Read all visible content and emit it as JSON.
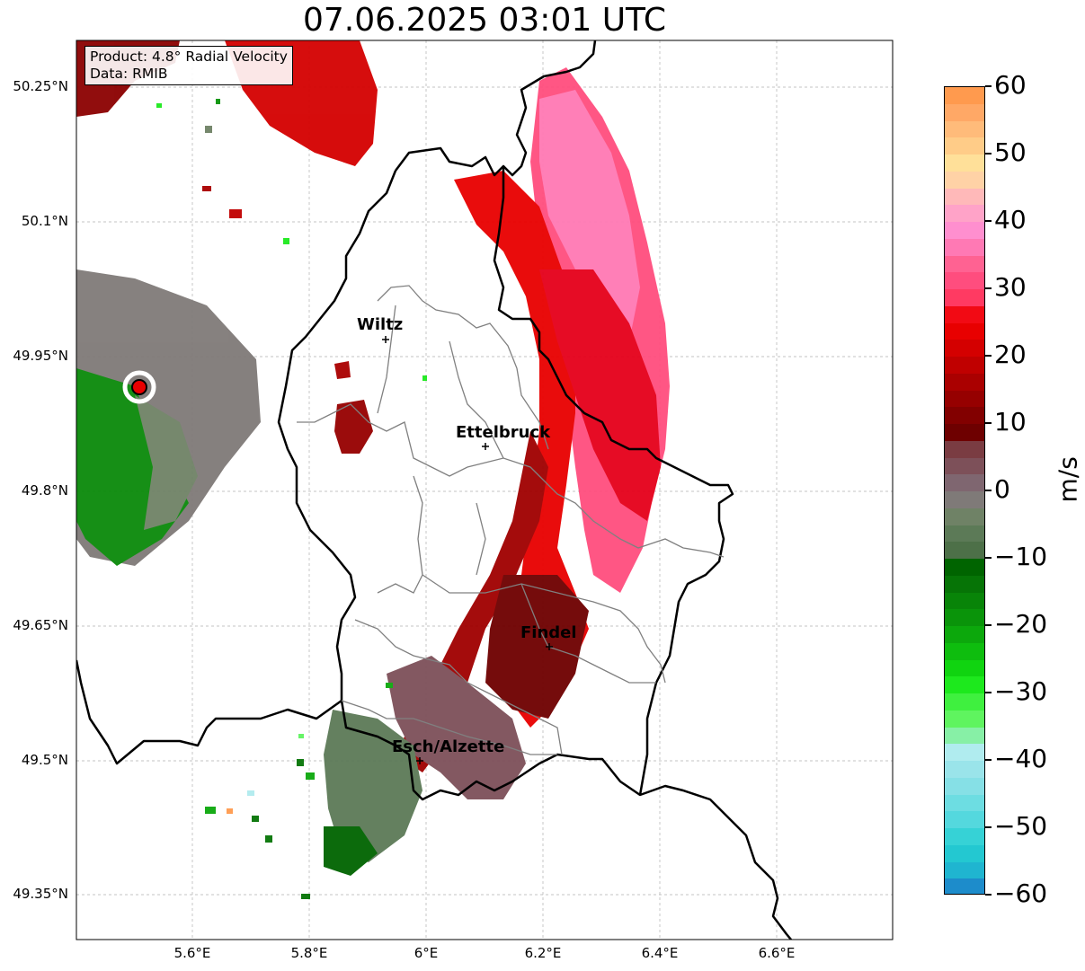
{
  "title": "07.06.2025 03:01 UTC",
  "info": {
    "product": "Product: 4.8° Radial Velocity",
    "data_source": "Data: RMIB"
  },
  "lat_ticks": [
    "50.25°N",
    "50.1°N",
    "49.95°N",
    "49.8°N",
    "49.65°N",
    "49.5°N",
    "49.35°N"
  ],
  "lon_ticks": [
    "5.6°E",
    "5.8°E",
    "6°E",
    "6.2°E",
    "6.4°E",
    "6.6°E"
  ],
  "cities": [
    {
      "name": "Wiltz"
    },
    {
      "name": "Ettelbruck"
    },
    {
      "name": "Findel"
    },
    {
      "name": "Esch/Alzette"
    }
  ],
  "colorbar": {
    "label": "m/s",
    "ticks": [
      "60",
      "50",
      "40",
      "30",
      "20",
      "10",
      "0",
      "−10",
      "−20",
      "−30",
      "−40",
      "−50",
      "−60"
    ],
    "colors": [
      "#ff9a4e",
      "#ffa866",
      "#ffbb7a",
      "#ffcc88",
      "#ffe099",
      "#ffd2a6",
      "#ffb9b9",
      "#ffa3c8",
      "#ff8fcf",
      "#ff79b4",
      "#ff6292",
      "#ff4d7e",
      "#ff3a62",
      "#f20a14",
      "#e80000",
      "#d40000",
      "#c00000",
      "#aa0000",
      "#960000",
      "#820000",
      "#6e0000",
      "#7a3c42",
      "#7d5059",
      "#7f6670",
      "#7f7a78",
      "#6f8266",
      "#5c7a57",
      "#4d7048",
      "#006400",
      "#067406",
      "#088408",
      "#0a940a",
      "#0ca80c",
      "#0ebd0e",
      "#10d410",
      "#1de91d",
      "#3ff03f",
      "#5ff45f",
      "#87f0a6",
      "#b0ecef",
      "#9ae4ea",
      "#86e0e6",
      "#6ddde2",
      "#54d8de",
      "#36d2d6",
      "#23c8d1",
      "#1fb5d0",
      "#1d8ccb"
    ]
  },
  "radar_site_color": "#e80000"
}
